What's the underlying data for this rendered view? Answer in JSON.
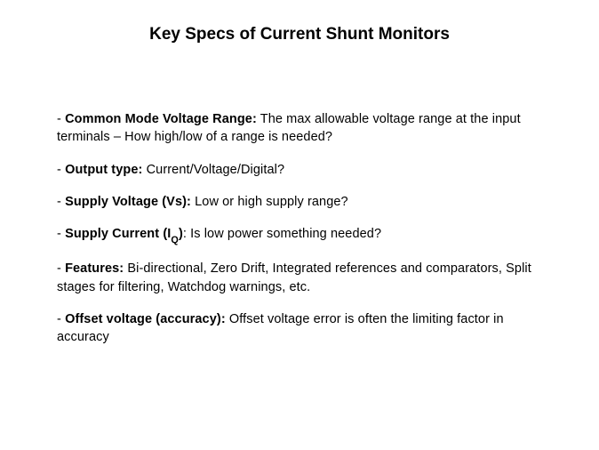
{
  "title": "Key Specs of Current Shunt Monitors",
  "items": [
    {
      "label": "Common Mode Voltage Range:",
      "text": " The max allowable voltage range at the input terminals – How high/low of a range is needed?"
    },
    {
      "label": "Output type:",
      "text": " Current/Voltage/Digital?"
    },
    {
      "label": "Supply Voltage (Vs):",
      "text": "  Low or high supply range?"
    },
    {
      "label_pre": "Supply Current (I",
      "label_sub": "Q",
      "label_post": ")",
      "text": ": Is low power something needed?"
    },
    {
      "label": "Features:",
      "text": " Bi-directional, Zero Drift, Integrated references and comparators, Split stages for filtering, Watchdog warnings, etc."
    },
    {
      "label": "Offset voltage (accuracy):",
      "text": " Offset voltage error is often the limiting factor in accuracy"
    }
  ]
}
